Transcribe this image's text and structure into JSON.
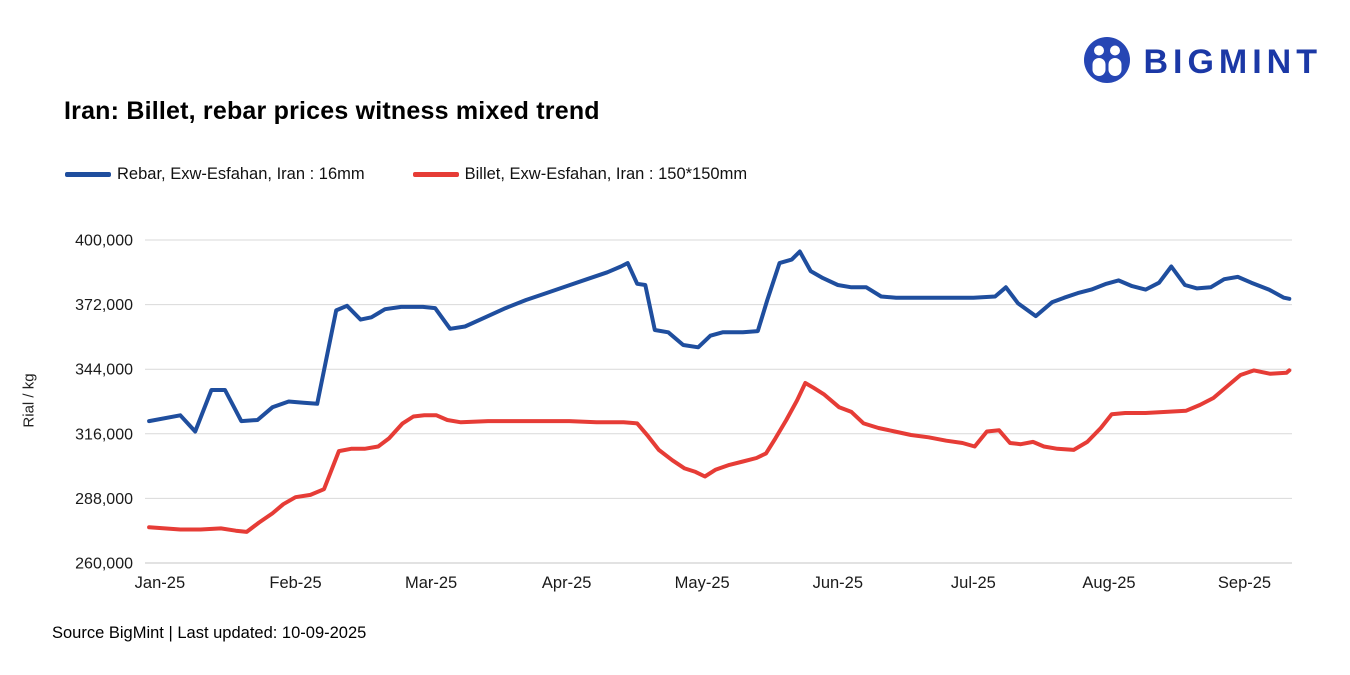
{
  "logo": {
    "brand": "BIGMINT"
  },
  "header": {
    "title": "Iran: Billet, rebar prices witness mixed trend"
  },
  "footer": {
    "text": "Source BigMint | Last updated: 10-09-2025"
  },
  "colors": {
    "brand": "#1b38a6",
    "logo_icon": "#2646b4",
    "rebar_blue": "#1f4e9e",
    "billet_red": "#e63c36",
    "grid": "#d9d9d9"
  },
  "chart_data": {
    "type": "line",
    "title": "Iran: Billet, rebar prices witness mixed trend",
    "xlabel": "",
    "ylabel": "Rial / kg",
    "ylim": [
      260000,
      400000
    ],
    "xlim": [
      -0.11,
      8.35
    ],
    "grid": "horizontal",
    "legend_position": "top-left",
    "yticks": [
      260000,
      288000,
      316000,
      344000,
      372000,
      400000
    ],
    "xticks": [
      {
        "pos": 0,
        "label": "Jan-25"
      },
      {
        "pos": 1,
        "label": "Feb-25"
      },
      {
        "pos": 2,
        "label": "Mar-25"
      },
      {
        "pos": 3,
        "label": "Apr-25"
      },
      {
        "pos": 4,
        "label": "May-25"
      },
      {
        "pos": 5,
        "label": "Jun-25"
      },
      {
        "pos": 6,
        "label": "Jul-25"
      },
      {
        "pos": 7,
        "label": "Aug-25"
      },
      {
        "pos": 8,
        "label": "Sep-25"
      }
    ],
    "series": [
      {
        "name": "Rebar, Exw-Esfahan, Iran : 16mm",
        "color": "#1f4e9e",
        "points": [
          [
            -0.08,
            321500
          ],
          [
            0.15,
            324000
          ],
          [
            0.26,
            317000
          ],
          [
            0.38,
            335000
          ],
          [
            0.48,
            335000
          ],
          [
            0.6,
            321500
          ],
          [
            0.72,
            322000
          ],
          [
            0.83,
            327500
          ],
          [
            0.95,
            330000
          ],
          [
            1.06,
            329500
          ],
          [
            1.16,
            329000
          ],
          [
            1.3,
            369500
          ],
          [
            1.38,
            371500
          ],
          [
            1.48,
            365500
          ],
          [
            1.56,
            366500
          ],
          [
            1.66,
            370000
          ],
          [
            1.78,
            371000
          ],
          [
            1.94,
            371000
          ],
          [
            2.03,
            370500
          ],
          [
            2.14,
            361500
          ],
          [
            2.25,
            362500
          ],
          [
            2.4,
            366500
          ],
          [
            2.55,
            370500
          ],
          [
            2.7,
            374000
          ],
          [
            2.85,
            377000
          ],
          [
            3.0,
            380000
          ],
          [
            3.15,
            383000
          ],
          [
            3.3,
            386000
          ],
          [
            3.4,
            388500
          ],
          [
            3.45,
            390000
          ],
          [
            3.52,
            381000
          ],
          [
            3.58,
            380500
          ],
          [
            3.65,
            361000
          ],
          [
            3.75,
            360000
          ],
          [
            3.86,
            354500
          ],
          [
            3.97,
            353500
          ],
          [
            4.06,
            358500
          ],
          [
            4.15,
            360000
          ],
          [
            4.3,
            360000
          ],
          [
            4.41,
            360500
          ],
          [
            4.48,
            374000
          ],
          [
            4.57,
            390000
          ],
          [
            4.66,
            391500
          ],
          [
            4.72,
            395000
          ],
          [
            4.8,
            386500
          ],
          [
            4.89,
            383500
          ],
          [
            5.0,
            380500
          ],
          [
            5.1,
            379500
          ],
          [
            5.21,
            379500
          ],
          [
            5.32,
            375500
          ],
          [
            5.43,
            375000
          ],
          [
            5.62,
            375000
          ],
          [
            5.81,
            375000
          ],
          [
            6.0,
            375000
          ],
          [
            6.16,
            375500
          ],
          [
            6.24,
            379500
          ],
          [
            6.33,
            372500
          ],
          [
            6.46,
            367000
          ],
          [
            6.58,
            373000
          ],
          [
            6.67,
            375000
          ],
          [
            6.77,
            377000
          ],
          [
            6.87,
            378500
          ],
          [
            6.98,
            381000
          ],
          [
            7.07,
            382500
          ],
          [
            7.17,
            380000
          ],
          [
            7.27,
            378500
          ],
          [
            7.37,
            381500
          ],
          [
            7.46,
            388500
          ],
          [
            7.56,
            380500
          ],
          [
            7.65,
            379000
          ],
          [
            7.75,
            379500
          ],
          [
            7.85,
            383000
          ],
          [
            7.95,
            384000
          ],
          [
            8.05,
            381500
          ],
          [
            8.18,
            378500
          ],
          [
            8.29,
            375000
          ],
          [
            8.33,
            374500
          ]
        ]
      },
      {
        "name": "Billet, Exw-Esfahan, Iran : 150*150mm",
        "color": "#e63c36",
        "points": [
          [
            -0.08,
            275500
          ],
          [
            0.15,
            274500
          ],
          [
            0.3,
            274500
          ],
          [
            0.45,
            275000
          ],
          [
            0.56,
            274000
          ],
          [
            0.64,
            273500
          ],
          [
            0.73,
            277500
          ],
          [
            0.83,
            281500
          ],
          [
            0.91,
            285500
          ],
          [
            1.0,
            288500
          ],
          [
            1.11,
            289500
          ],
          [
            1.21,
            292000
          ],
          [
            1.32,
            308500
          ],
          [
            1.41,
            309500
          ],
          [
            1.51,
            309500
          ],
          [
            1.61,
            310500
          ],
          [
            1.69,
            314000
          ],
          [
            1.79,
            320500
          ],
          [
            1.87,
            323500
          ],
          [
            1.95,
            324000
          ],
          [
            2.04,
            324000
          ],
          [
            2.12,
            322000
          ],
          [
            2.22,
            321000
          ],
          [
            2.42,
            321500
          ],
          [
            2.62,
            321500
          ],
          [
            2.82,
            321500
          ],
          [
            3.02,
            321500
          ],
          [
            3.22,
            321000
          ],
          [
            3.42,
            321000
          ],
          [
            3.52,
            320500
          ],
          [
            3.6,
            315000
          ],
          [
            3.68,
            309000
          ],
          [
            3.78,
            304500
          ],
          [
            3.87,
            301000
          ],
          [
            3.95,
            299500
          ],
          [
            4.02,
            297500
          ],
          [
            4.1,
            300500
          ],
          [
            4.2,
            302500
          ],
          [
            4.3,
            304000
          ],
          [
            4.4,
            305500
          ],
          [
            4.47,
            307500
          ],
          [
            4.54,
            314000
          ],
          [
            4.62,
            322000
          ],
          [
            4.7,
            330500
          ],
          [
            4.76,
            338000
          ],
          [
            4.82,
            336000
          ],
          [
            4.9,
            333000
          ],
          [
            5.01,
            327500
          ],
          [
            5.1,
            325500
          ],
          [
            5.19,
            320500
          ],
          [
            5.3,
            318500
          ],
          [
            5.42,
            317000
          ],
          [
            5.54,
            315500
          ],
          [
            5.67,
            314500
          ],
          [
            5.8,
            313000
          ],
          [
            5.92,
            312000
          ],
          [
            6.01,
            310500
          ],
          [
            6.1,
            317000
          ],
          [
            6.19,
            317500
          ],
          [
            6.27,
            312000
          ],
          [
            6.35,
            311500
          ],
          [
            6.44,
            312500
          ],
          [
            6.52,
            310500
          ],
          [
            6.62,
            309500
          ],
          [
            6.74,
            309000
          ],
          [
            6.84,
            312500
          ],
          [
            6.94,
            318500
          ],
          [
            7.02,
            324500
          ],
          [
            7.12,
            325000
          ],
          [
            7.27,
            325000
          ],
          [
            7.42,
            325500
          ],
          [
            7.57,
            326000
          ],
          [
            7.67,
            328500
          ],
          [
            7.77,
            331500
          ],
          [
            7.87,
            336500
          ],
          [
            7.97,
            341500
          ],
          [
            8.07,
            343500
          ],
          [
            8.19,
            342000
          ],
          [
            8.31,
            342500
          ],
          [
            8.33,
            343500
          ]
        ]
      }
    ]
  }
}
